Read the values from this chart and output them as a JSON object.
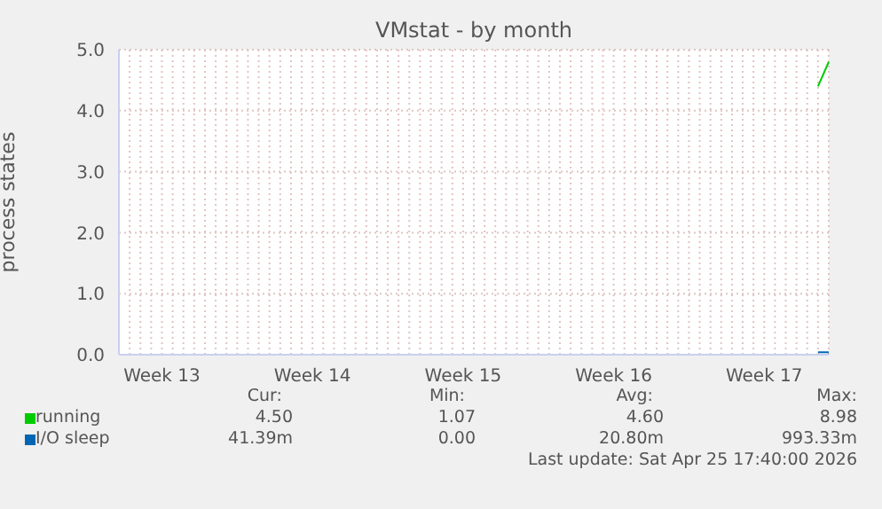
{
  "chart_data": {
    "type": "line",
    "title": "VMstat - by month",
    "ylabel": "process states",
    "categories": [
      null,
      null,
      null,
      null,
      "Week 13",
      null,
      null,
      null,
      null,
      null,
      null,
      null,
      null,
      null,
      null,
      null,
      null,
      null,
      "Week 14",
      null,
      null,
      null,
      null,
      null,
      null,
      null,
      null,
      null,
      null,
      null,
      null,
      null,
      "Week 15",
      null,
      null,
      null,
      null,
      null,
      null,
      null,
      null,
      null,
      null,
      null,
      null,
      null,
      "Week 16",
      null,
      null,
      null,
      null,
      null,
      null,
      null,
      null,
      null,
      null,
      null,
      null,
      null,
      "Week 17",
      null,
      null,
      null,
      null,
      null,
      null
    ],
    "ylim": [
      0,
      5
    ],
    "yticks": [
      {
        "value": 0,
        "label": "0.0"
      },
      {
        "value": 1,
        "label": "1.0"
      },
      {
        "value": 2,
        "label": "2.0"
      },
      {
        "value": 3,
        "label": "3.0"
      },
      {
        "value": 4,
        "label": "4.0"
      },
      {
        "value": 5,
        "label": "5.0"
      }
    ],
    "grid": true,
    "legend": "bottom",
    "marker": "none",
    "series": [
      {
        "name": "running",
        "color": "#00cc00",
        "values": [
          null,
          null,
          null,
          null,
          null,
          null,
          null,
          null,
          null,
          null,
          null,
          null,
          null,
          null,
          null,
          null,
          null,
          null,
          null,
          null,
          null,
          null,
          null,
          null,
          null,
          null,
          null,
          null,
          null,
          null,
          null,
          null,
          null,
          null,
          null,
          null,
          null,
          null,
          null,
          null,
          null,
          null,
          null,
          null,
          null,
          null,
          null,
          null,
          null,
          null,
          null,
          null,
          null,
          null,
          null,
          null,
          null,
          null,
          null,
          null,
          null,
          null,
          null,
          null,
          null,
          4.4,
          4.8
        ]
      },
      {
        "name": "I/O sleep",
        "color": "#0066b3",
        "values": [
          null,
          null,
          null,
          null,
          null,
          null,
          null,
          null,
          null,
          null,
          null,
          null,
          null,
          null,
          null,
          null,
          null,
          null,
          null,
          null,
          null,
          null,
          null,
          null,
          null,
          null,
          null,
          null,
          null,
          null,
          null,
          null,
          null,
          null,
          null,
          null,
          null,
          null,
          null,
          null,
          null,
          null,
          null,
          null,
          null,
          null,
          null,
          null,
          null,
          null,
          null,
          null,
          null,
          null,
          null,
          null,
          null,
          null,
          null,
          null,
          null,
          null,
          null,
          null,
          null,
          0.04,
          0.04
        ]
      }
    ],
    "annotations": [
      "Cur:",
      "Min:",
      "Avg:",
      "Max:",
      "4.50",
      "1.07",
      "4.60",
      "8.98",
      "41.39m",
      "0.00",
      "20.80m",
      "993.33m",
      "Last update: Sat Apr 25 17:40:00 2026"
    ]
  }
}
